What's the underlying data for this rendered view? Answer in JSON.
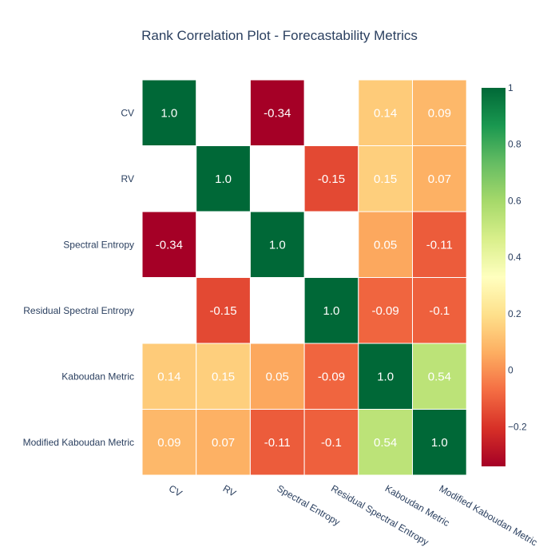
{
  "chart_data": {
    "type": "heatmap",
    "title": "Rank Correlation Plot - Forecastability Metrics",
    "x_labels": [
      "CV",
      "RV",
      "Spectral Entropy",
      "Residual Spectral Entropy",
      "Kaboudan Metric",
      "Modified Kaboudan Metric"
    ],
    "y_labels": [
      "CV",
      "RV",
      "Spectral Entropy",
      "Residual Spectral Entropy",
      "Kaboudan Metric",
      "Modified Kaboudan Metric"
    ],
    "values": [
      [
        1.0,
        null,
        -0.34,
        null,
        0.14,
        0.09
      ],
      [
        null,
        1.0,
        null,
        -0.15,
        0.15,
        0.07
      ],
      [
        -0.34,
        null,
        1.0,
        null,
        0.05,
        -0.11
      ],
      [
        null,
        -0.15,
        null,
        1.0,
        -0.09,
        -0.1
      ],
      [
        0.14,
        0.15,
        0.05,
        -0.09,
        1.0,
        0.54
      ],
      [
        0.09,
        0.07,
        -0.11,
        -0.1,
        0.54,
        1.0
      ]
    ],
    "value_labels": [
      [
        "1.0",
        "",
        "-0.34",
        "",
        "0.14",
        "0.09"
      ],
      [
        "",
        "1.0",
        "",
        "-0.15",
        "0.15",
        "0.07"
      ],
      [
        "-0.34",
        "",
        "1.0",
        "",
        "0.05",
        "-0.11"
      ],
      [
        "",
        "-0.15",
        "",
        "1.0",
        "-0.09",
        "-0.1"
      ],
      [
        "0.14",
        "0.15",
        "0.05",
        "-0.09",
        "1.0",
        "0.54"
      ],
      [
        "0.09",
        "0.07",
        "-0.11",
        "-0.1",
        "0.54",
        "1.0"
      ]
    ],
    "zrange": [
      -0.34,
      1.0
    ],
    "colorscale": "RdYlGn",
    "colorbar_ticks": [
      {
        "value": 1,
        "label": "1"
      },
      {
        "value": 0.8,
        "label": "0.8"
      },
      {
        "value": 0.6,
        "label": "0.6"
      },
      {
        "value": 0.4,
        "label": "0.4"
      },
      {
        "value": 0.2,
        "label": "0.2"
      },
      {
        "value": 0,
        "label": "0"
      },
      {
        "value": -0.2,
        "label": "−0.2"
      }
    ],
    "grid": false
  }
}
